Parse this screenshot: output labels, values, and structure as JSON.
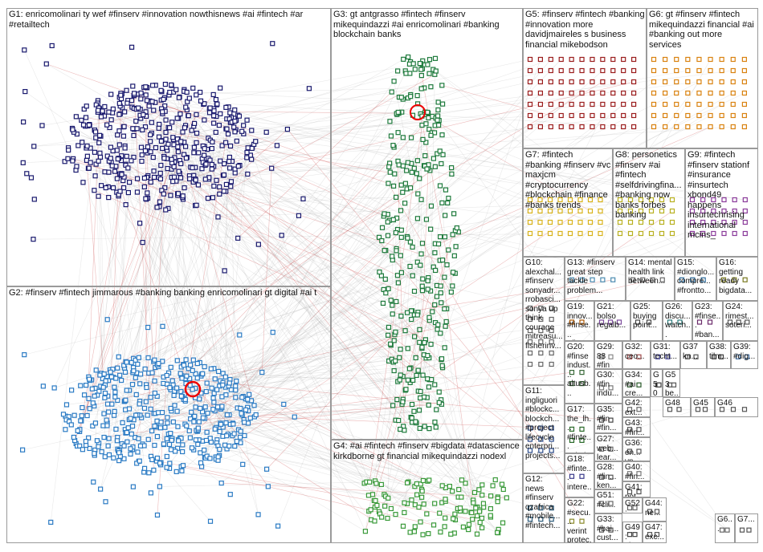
{
  "groups": [
    {
      "label": "G1: enricomolinari ty wef #finserv #innovation nowthisnews #ai #fintech #ar #retailtech"
    },
    {
      "label": "G2: #finserv #fintech jimmarous #banking banking enricomolinari gt digital #ai t"
    },
    {
      "label": "G3: gt antgrasso #fintech #finserv mikequindazzi #ai enricomolinari #banking blockchain banks"
    },
    {
      "label": "G4: #ai #fintech #finserv #bigdata #datascience kirkdborne gt financial mikequindazzi nodexl"
    },
    {
      "label": "G5: #finserv #fintech #banking #innovation more davidjmaireles s business financial mikebodson"
    },
    {
      "label": "G6: gt #finserv #fintech mikequindazzi financial #ai #banking out more services"
    },
    {
      "label": "G7: #fintech #banking #finserv #vc maxjcm #cryptocurrency #blockchain #finance #banks trends"
    },
    {
      "label": "G8: personetics #finserv #ai #fintech #selfdrivingfina... #banking now banks forbes banking"
    },
    {
      "label": "G9: #fintech #finserv stationf #insurance #insurtech xbond49 happens insurtechrising international mcins_"
    },
    {
      "label": "G10: alexchal... #finserv sonyadr... rrobasci... sonya up think courage mitreasu... fisherinv..."
    },
    {
      "label": "G13: #finserv great step tackle problem..."
    },
    {
      "label": "G14: mental health link between..."
    },
    {
      "label": "G15: #dionglo... compre... #frontto..."
    },
    {
      "label": "G16: getting ready bigdata..."
    },
    {
      "label": "G19: innov... #finse... #finte..."
    },
    {
      "label": "G21: bolso regalb..."
    },
    {
      "label": "G25: buying point..."
    },
    {
      "label": "G26: discu... watch..."
    },
    {
      "label": "G23: #finse... #ban..."
    },
    {
      "label": "G24: rimest... soteri..."
    },
    {
      "label": "G20: #finse indust... altusb..."
    },
    {
      "label": "G29: 88 #fin #finte..."
    },
    {
      "label": "G32: ceo..."
    },
    {
      "label": "G31: techt..."
    },
    {
      "label": "G37 kn..."
    },
    {
      "label": "G38: tilm..."
    },
    {
      "label": "G39: #dig..."
    },
    {
      "label": "G11: ingliguori #blockc... blockch... #project lifecycle enterpri... projects..."
    },
    {
      "label": "G30: #fin indu..."
    },
    {
      "label": "G34: #ai cre..."
    },
    {
      "label": "G50"
    },
    {
      "label": "G53 be..."
    },
    {
      "label": "G42: ext..."
    },
    {
      "label": "G48"
    },
    {
      "label": "G45"
    },
    {
      "label": "G46"
    },
    {
      "label": "G17: the_lh... #finte... soluti..."
    },
    {
      "label": "G35: #fin #fin..."
    },
    {
      "label": "G43: #fin..."
    },
    {
      "label": "G27: web... lear..."
    },
    {
      "label": "G36: en... vp..."
    },
    {
      "label": "G40: #fin..."
    },
    {
      "label": "G18: #finte... intere... look..."
    },
    {
      "label": "G28: #fin... ken..."
    },
    {
      "label": "G51: #cli..."
    },
    {
      "label": "G41: pot..."
    },
    {
      "label": "G12: news #finserv qzafrica #mobile... #fintech..."
    },
    {
      "label": "G22: #secu... verint protec..."
    },
    {
      "label": "G33: #bai... cust..."
    },
    {
      "label": "G52: #fin..."
    },
    {
      "label": "G44: ne..."
    },
    {
      "label": "G49: cha..."
    },
    {
      "label": "G47: exc..."
    },
    {
      "label": "G6..."
    },
    {
      "label": "G7..."
    }
  ]
}
